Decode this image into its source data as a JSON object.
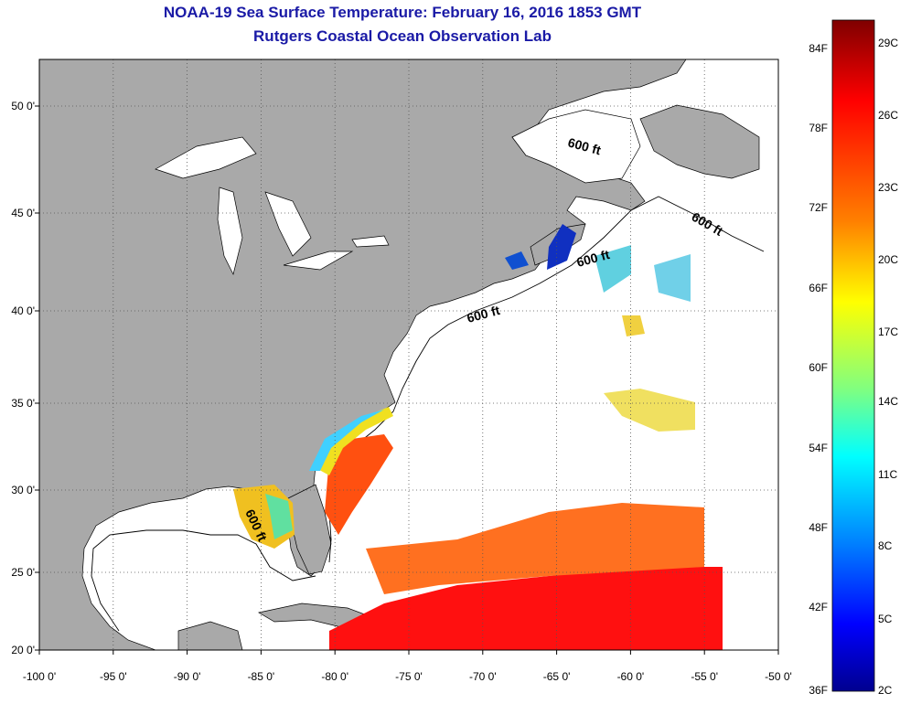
{
  "title": {
    "line1": "NOAA-19 Sea Surface Temperature:  February 16, 2016 1853 GMT",
    "line2": "Rutgers Coastal Ocean Observation Lab"
  },
  "map": {
    "lon_ticks": [
      "-100 0'",
      "-95 0'",
      "-90 0'",
      "-85 0'",
      "-80 0'",
      "-75 0'",
      "-70 0'",
      "-65 0'",
      "-60 0'",
      "-55 0'",
      "-50 0'"
    ],
    "lat_ticks": [
      "50 0'",
      "45 0'",
      "40 0'",
      "35 0'",
      "30 0'",
      "25 0'",
      "20 0'"
    ],
    "isobath_labels": [
      "600 ft",
      "600 ft",
      "600 ft",
      "600 ft",
      "600 ft"
    ],
    "colors": {
      "land": "#a9a9a9",
      "ocean": "#ffffff",
      "title": "#1a1aa6"
    }
  },
  "colorbar": {
    "fahrenheit": [
      "84F",
      "78F",
      "72F",
      "66F",
      "60F",
      "54F",
      "48F",
      "42F",
      "36F"
    ],
    "celsius": [
      "29C",
      "26C",
      "23C",
      "20C",
      "17C",
      "14C",
      "11C",
      "8C",
      "5C",
      "2C"
    ],
    "gradient": [
      "#7f0000",
      "#ff0000",
      "#ff8000",
      "#ffff00",
      "#80ff80",
      "#00ffff",
      "#0080ff",
      "#0000ff",
      "#00008f"
    ]
  }
}
